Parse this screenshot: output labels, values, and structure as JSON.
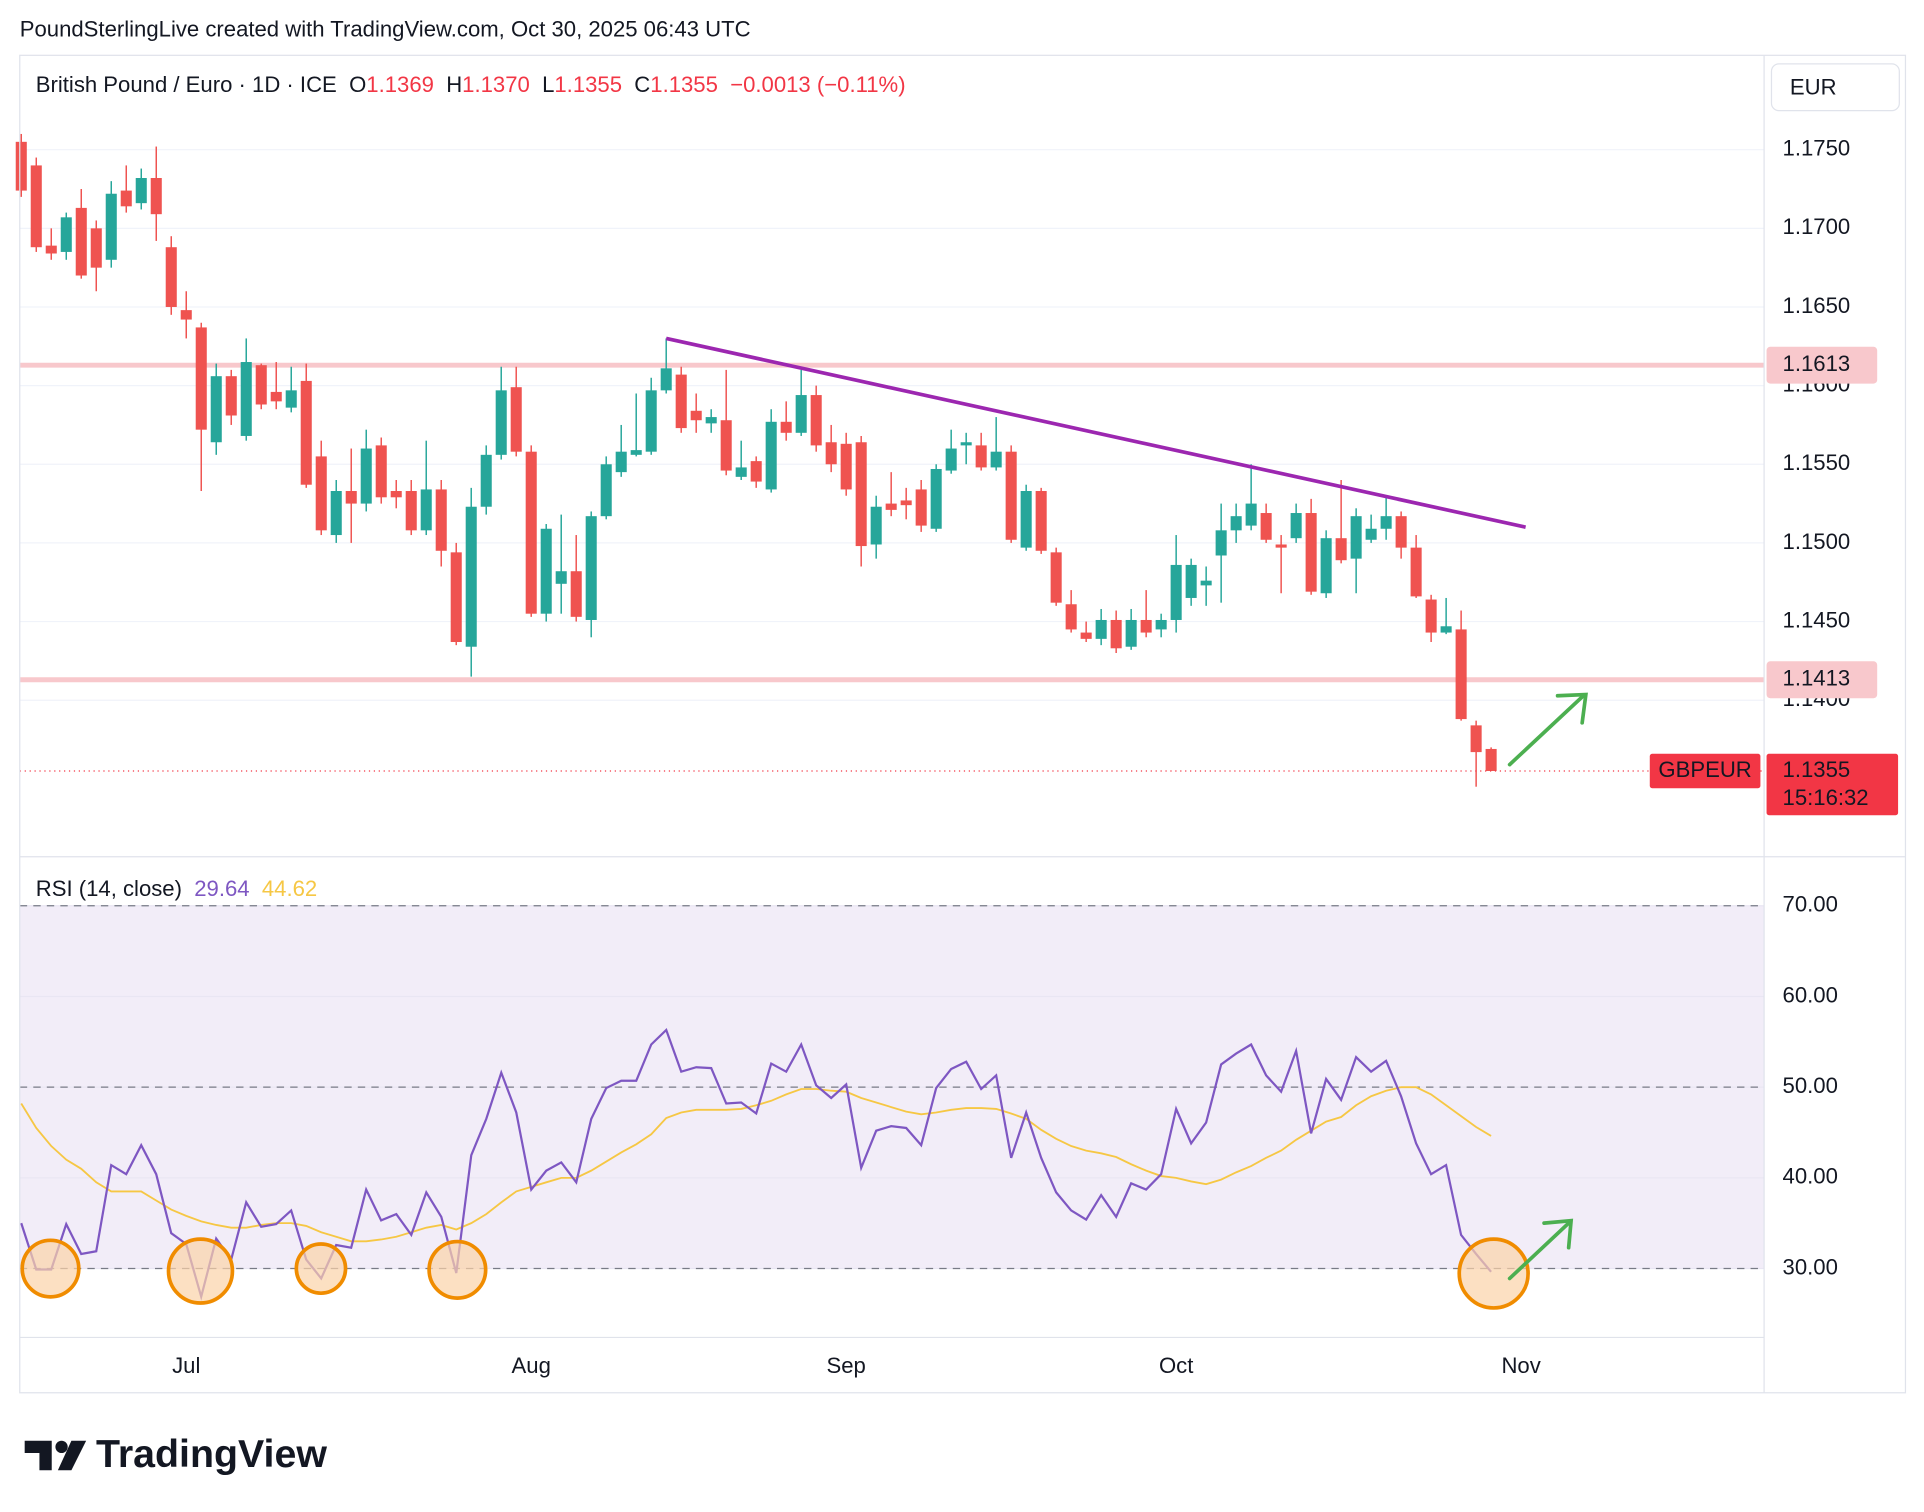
{
  "header": {
    "caption": "PoundSterlingLive created with TradingView.com, Oct 30, 2025 06:43 UTC",
    "symbol": "British Pound / Euro · 1D · ICE",
    "ohlc": [
      {
        "key": "O",
        "value": "1.1369"
      },
      {
        "key": "H",
        "value": "1.1370"
      },
      {
        "key": "L",
        "value": "1.1355"
      },
      {
        "key": "C",
        "value": "1.1355"
      }
    ],
    "change": "−0.0013 (−0.11%)",
    "currency": "EUR",
    "logo": "TradingView"
  },
  "chart_data": [
    {
      "type": "candlestick",
      "up_color": "#26a69a",
      "down_color": "#ef5350",
      "open": [
        1.1755,
        1.174,
        1.1689,
        1.1685,
        1.1713,
        1.17,
        1.168,
        1.1724,
        1.1716,
        1.1732,
        1.1688,
        1.1648,
        1.1637,
        1.1564,
        1.1606,
        1.1568,
        1.1613,
        1.1596,
        1.1586,
        1.1603,
        1.1555,
        1.1505,
        1.1533,
        1.1525,
        1.1562,
        1.1533,
        1.1533,
        1.1508,
        1.1534,
        1.1494,
        1.1434,
        1.1523,
        1.1556,
        1.1599,
        1.1558,
        1.1455,
        1.1474,
        1.1482,
        1.1451,
        1.1517,
        1.1545,
        1.1556,
        1.1558,
        1.1597,
        1.1607,
        1.1584,
        1.1576,
        1.1578,
        1.1542,
        1.1552,
        1.1534,
        1.1577,
        1.157,
        1.1594,
        1.1564,
        1.1563,
        1.1564,
        1.1499,
        1.1525,
        1.1527,
        1.1534,
        1.1509,
        1.1546,
        1.1562,
        1.1562,
        1.1548,
        1.1558,
        1.1497,
        1.1533,
        1.1494,
        1.1461,
        1.1443,
        1.1439,
        1.1451,
        1.1434,
        1.1451,
        1.1445,
        1.1451,
        1.1465,
        1.1473,
        1.1492,
        1.1508,
        1.1511,
        1.1519,
        1.1499,
        1.1503,
        1.1519,
        1.1468,
        1.1503,
        1.149,
        1.1502,
        1.1509,
        1.1517,
        1.1497,
        1.1464,
        1.1443,
        1.1445,
        1.1384,
        1.1369
      ],
      "high": [
        1.176,
        1.1745,
        1.17,
        1.171,
        1.1725,
        1.1705,
        1.173,
        1.174,
        1.1738,
        1.1752,
        1.1695,
        1.166,
        1.164,
        1.1614,
        1.161,
        1.163,
        1.1614,
        1.1615,
        1.1612,
        1.1614,
        1.1565,
        1.154,
        1.156,
        1.1572,
        1.1567,
        1.154,
        1.154,
        1.1565,
        1.154,
        1.15,
        1.1535,
        1.1562,
        1.1612,
        1.1612,
        1.1562,
        1.1512,
        1.1518,
        1.1505,
        1.152,
        1.1555,
        1.1575,
        1.1595,
        1.1605,
        1.163,
        1.1612,
        1.1595,
        1.1585,
        1.161,
        1.1565,
        1.1555,
        1.1585,
        1.159,
        1.161,
        1.16,
        1.1575,
        1.157,
        1.1568,
        1.153,
        1.1545,
        1.1535,
        1.154,
        1.155,
        1.1572,
        1.157,
        1.157,
        1.158,
        1.1562,
        1.1537,
        1.1535,
        1.1497,
        1.147,
        1.145,
        1.1458,
        1.1457,
        1.1458,
        1.147,
        1.1455,
        1.1505,
        1.149,
        1.1485,
        1.1525,
        1.1525,
        1.155,
        1.1525,
        1.1505,
        1.1525,
        1.1528,
        1.1508,
        1.154,
        1.1522,
        1.1518,
        1.153,
        1.152,
        1.1505,
        1.1467,
        1.1465,
        1.1457,
        1.1387,
        1.137
      ],
      "low": [
        1.172,
        1.1685,
        1.168,
        1.168,
        1.1668,
        1.166,
        1.1675,
        1.171,
        1.1712,
        1.1692,
        1.1645,
        1.163,
        1.1533,
        1.1556,
        1.1575,
        1.1565,
        1.1585,
        1.1585,
        1.1583,
        1.1535,
        1.1505,
        1.15,
        1.15,
        1.152,
        1.1525,
        1.1522,
        1.1505,
        1.1505,
        1.1485,
        1.1435,
        1.1415,
        1.1518,
        1.1553,
        1.1555,
        1.1453,
        1.145,
        1.1455,
        1.145,
        1.144,
        1.1515,
        1.1542,
        1.1555,
        1.1556,
        1.1595,
        1.157,
        1.157,
        1.157,
        1.1543,
        1.154,
        1.1535,
        1.1532,
        1.1565,
        1.1568,
        1.1558,
        1.1545,
        1.153,
        1.1485,
        1.149,
        1.1517,
        1.1515,
        1.1507,
        1.1507,
        1.1544,
        1.155,
        1.1546,
        1.1546,
        1.15,
        1.1495,
        1.1493,
        1.146,
        1.1443,
        1.1437,
        1.1435,
        1.143,
        1.1432,
        1.144,
        1.144,
        1.1443,
        1.146,
        1.146,
        1.1462,
        1.15,
        1.1508,
        1.15,
        1.1468,
        1.15,
        1.1467,
        1.1465,
        1.1487,
        1.1468,
        1.15,
        1.1502,
        1.149,
        1.1465,
        1.1437,
        1.1442,
        1.1387,
        1.1345,
        1.1355
      ],
      "close": [
        1.1724,
        1.1688,
        1.1684,
        1.1707,
        1.167,
        1.1675,
        1.1722,
        1.1714,
        1.1732,
        1.1709,
        1.165,
        1.1642,
        1.1572,
        1.1606,
        1.1581,
        1.1615,
        1.1588,
        1.159,
        1.1597,
        1.1537,
        1.1508,
        1.1533,
        1.1525,
        1.156,
        1.1529,
        1.1529,
        1.1508,
        1.1534,
        1.1495,
        1.1437,
        1.1523,
        1.1556,
        1.1597,
        1.1558,
        1.1455,
        1.1509,
        1.1482,
        1.1453,
        1.1517,
        1.155,
        1.1558,
        1.1559,
        1.1597,
        1.1611,
        1.1573,
        1.1578,
        1.158,
        1.1546,
        1.1548,
        1.1539,
        1.1577,
        1.157,
        1.1594,
        1.1562,
        1.155,
        1.1534,
        1.1498,
        1.1523,
        1.1521,
        1.1524,
        1.1511,
        1.1547,
        1.156,
        1.1564,
        1.1548,
        1.1558,
        1.1502,
        1.1533,
        1.1495,
        1.1462,
        1.1445,
        1.1439,
        1.1451,
        1.1433,
        1.1451,
        1.1443,
        1.1451,
        1.1486,
        1.1486,
        1.1476,
        1.1508,
        1.1517,
        1.1525,
        1.1502,
        1.1497,
        1.1519,
        1.1469,
        1.1503,
        1.1489,
        1.1517,
        1.1509,
        1.1517,
        1.1497,
        1.1466,
        1.1443,
        1.1447,
        1.1388,
        1.1367,
        1.1355
      ],
      "xlim": [
        -0.1,
        116.2
      ],
      "xticks": [
        {
          "value": 11,
          "label": "Jul"
        },
        {
          "value": 34,
          "label": "Aug"
        },
        {
          "value": 55,
          "label": "Sep"
        },
        {
          "value": 77,
          "label": "Oct"
        },
        {
          "value": 100,
          "label": "Nov"
        }
      ],
      "ylim": [
        1.1302,
        1.181
      ],
      "yticks": [
        {
          "value": 1.14,
          "label": "1.1400"
        },
        {
          "value": 1.145,
          "label": "1.1450"
        },
        {
          "value": 1.15,
          "label": "1.1500"
        },
        {
          "value": 1.155,
          "label": "1.1550"
        },
        {
          "value": 1.16,
          "label": "1.1600"
        },
        {
          "value": 1.165,
          "label": "1.1650"
        },
        {
          "value": 1.17,
          "label": "1.1700"
        },
        {
          "value": 1.175,
          "label": "1.1750"
        }
      ],
      "grid": true,
      "hlines": [
        1.1613,
        1.1413
      ],
      "hline_color": "#f8c8cc",
      "trendline": {
        "x": [
          43,
          100.3
        ],
        "y": [
          1.163,
          1.151
        ],
        "color": "#9c27b0"
      },
      "last_price": 1.1355,
      "symbol_tag": "GBPEUR",
      "countdown": "15:16:32",
      "last_color": "#f23645"
    },
    {
      "type": "line",
      "title": "RSI (14, close)",
      "series": [
        {
          "color": "#7e57c2",
          "value_label": "29.64",
          "values": [
            35.0,
            29.9,
            29.9,
            34.9,
            31.6,
            31.9,
            41.4,
            40.4,
            43.6,
            40.4,
            33.9,
            32.7,
            26.9,
            33.3,
            31.0,
            37.3,
            34.6,
            34.9,
            36.4,
            31.0,
            28.9,
            32.6,
            32.3,
            38.7,
            35.3,
            36.0,
            33.7,
            38.4,
            35.7,
            29.5,
            42.5,
            46.5,
            51.6,
            47.2,
            38.7,
            40.8,
            41.7,
            39.5,
            46.5,
            49.9,
            50.7,
            50.7,
            54.7,
            56.3,
            51.7,
            52.2,
            52.1,
            48.2,
            48.3,
            47.1,
            52.6,
            51.7,
            54.7,
            50.2,
            48.8,
            50.3,
            41.1,
            45.2,
            45.7,
            45.5,
            43.6,
            49.9,
            52.0,
            52.8,
            49.8,
            51.3,
            42.2,
            47.2,
            42.2,
            38.4,
            36.4,
            35.4,
            38.1,
            35.7,
            39.4,
            38.7,
            40.4,
            47.6,
            43.8,
            46.1,
            52.5,
            53.7,
            54.7,
            51.3,
            49.5,
            54.0,
            44.9,
            50.9,
            48.6,
            53.3,
            51.7,
            52.9,
            49.0,
            43.8,
            40.4,
            41.4,
            33.7,
            31.6,
            29.64
          ]
        },
        {
          "color": "#f6c744",
          "value_label": "44.62",
          "values": [
            48.2,
            45.5,
            43.5,
            42.0,
            41.0,
            39.5,
            38.5,
            38.5,
            38.5,
            37.5,
            36.5,
            35.8,
            35.2,
            34.8,
            34.5,
            34.5,
            34.8,
            35.0,
            35.0,
            34.7,
            34.0,
            33.5,
            33.0,
            33.0,
            33.2,
            33.5,
            34.0,
            34.5,
            34.8,
            34.3,
            35.0,
            36.0,
            37.3,
            38.5,
            39.0,
            39.5,
            40.0,
            40.0,
            40.8,
            41.8,
            42.8,
            43.7,
            44.8,
            46.6,
            47.2,
            47.5,
            47.5,
            47.5,
            47.6,
            48.0,
            48.5,
            49.2,
            49.8,
            49.8,
            49.6,
            49.5,
            48.8,
            48.3,
            47.8,
            47.3,
            47.0,
            47.2,
            47.5,
            47.7,
            47.7,
            47.6,
            47.1,
            46.5,
            45.3,
            44.3,
            43.5,
            43.0,
            42.7,
            42.3,
            41.5,
            40.8,
            40.2,
            40.0,
            39.6,
            39.3,
            39.8,
            40.6,
            41.3,
            42.2,
            43.0,
            44.2,
            45.2,
            46.2,
            46.7,
            48.0,
            49.0,
            49.6,
            50.0,
            50.0,
            49.2,
            48.0,
            46.8,
            45.6,
            44.62
          ]
        }
      ],
      "ylim": [
        22.4,
        75.4
      ],
      "yticks": [
        {
          "value": 30,
          "label": "30.00"
        },
        {
          "value": 40,
          "label": "40.00"
        },
        {
          "value": 50,
          "label": "50.00"
        },
        {
          "value": 60,
          "label": "60.00"
        },
        {
          "value": 70,
          "label": "70.00"
        }
      ],
      "grid": true,
      "band": [
        30,
        70
      ],
      "band_color": "#ede7f6",
      "hlines": [
        70,
        50,
        30
      ]
    }
  ]
}
